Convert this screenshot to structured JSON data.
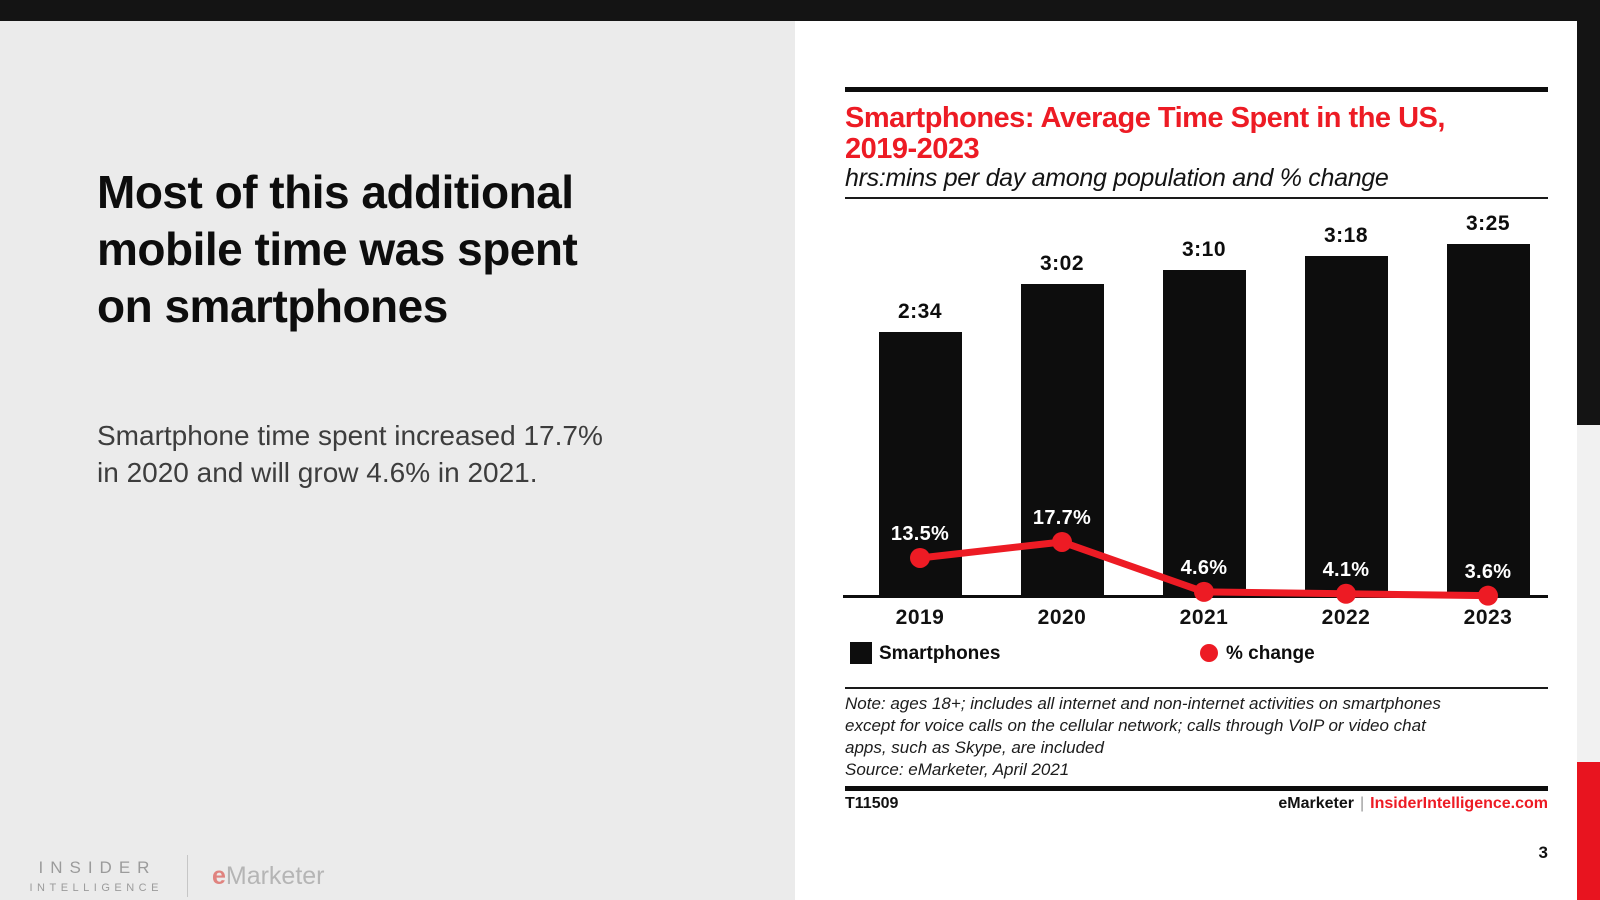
{
  "slide": {
    "heading": "Most of this additional\nmobile time was spent\non smartphones",
    "body": "Smartphone time spent increased 17.7%\nin 2020 and will grow 4.6% in 2021.",
    "page_number": "3",
    "brand": {
      "insider": "INSIDER",
      "intelligence": "INTELLIGENCE",
      "emarketer_e": "e",
      "emarketer_rest": "Marketer"
    }
  },
  "chart": {
    "title": "Smartphones: Average Time Spent in the US,\n2019-2023",
    "subtitle": "hrs:mins per day among population and % change",
    "legend": [
      {
        "label": "Smartphones"
      },
      {
        "label": "% change"
      }
    ],
    "note": "Note: ages 18+; includes all internet and non-internet activities on smartphones\nexcept for voice calls on the cellular network; calls through VoIP or video chat\napps, such as Skype, are included\nSource: eMarketer, April 2021",
    "footer": {
      "id": "T11509",
      "brand": "eMarketer",
      "divider": "|",
      "site": "InsiderIntelligence.com"
    }
  },
  "chart_data": {
    "type": "bar",
    "categories": [
      "2019",
      "2020",
      "2021",
      "2022",
      "2023"
    ],
    "series": [
      {
        "name": "Smartphones",
        "unit": "hrs:mins per day",
        "labels": [
          "2:34",
          "3:02",
          "3:10",
          "3:18",
          "3:25"
        ],
        "values_minutes": [
          154,
          182,
          190,
          198,
          205
        ]
      },
      {
        "name": "% change",
        "unit": "%",
        "labels": [
          "13.5%",
          "17.7%",
          "4.6%",
          "4.1%",
          "3.6%"
        ],
        "values": [
          13.5,
          17.7,
          4.6,
          4.1,
          3.6
        ]
      }
    ],
    "title": "Smartphones: Average Time Spent in the US, 2019-2023",
    "xlabel": "",
    "ylabel": "hrs:mins per day",
    "y2label": "% change",
    "ylim_minutes": [
      0,
      215
    ],
    "grid": false,
    "legend_position": "bottom",
    "colors": {
      "bar": "#0d0d0d",
      "line": "#ed1b24",
      "pct_label": "#ffffff"
    }
  },
  "colors": {
    "accent_red": "#ed1b24",
    "strip_red": "#e8141f",
    "top_bar_black": "#141414",
    "left_panel_gray": "#ebebeb",
    "strip_gray": "#f1f1f1"
  }
}
